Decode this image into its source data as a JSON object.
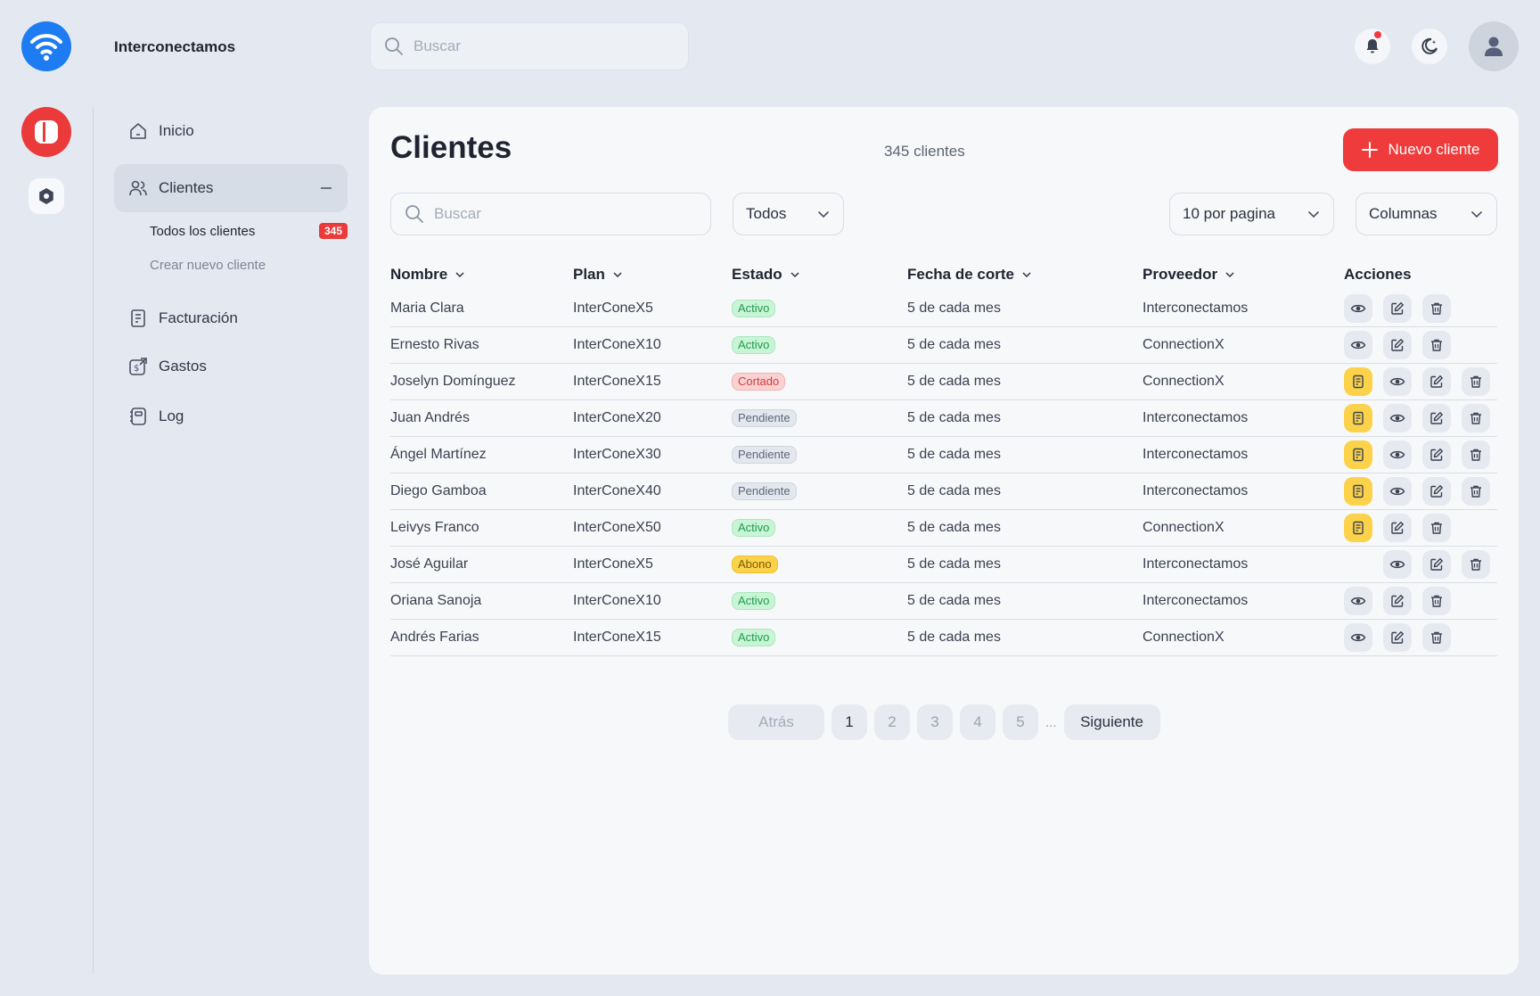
{
  "app": {
    "brand": "Interconectamos"
  },
  "topbar": {
    "search_placeholder": "Buscar"
  },
  "sidebar": {
    "items": [
      {
        "label": "Inicio",
        "icon": "home-icon"
      },
      {
        "label": "Clientes",
        "icon": "users-icon"
      },
      {
        "label": "Facturación",
        "icon": "receipt-icon"
      },
      {
        "label": "Gastos",
        "icon": "money-icon"
      },
      {
        "label": "Log",
        "icon": "log-icon"
      }
    ],
    "clientes_sub": [
      {
        "label": "Todos los clientes",
        "badge": "345"
      },
      {
        "label": "Crear nuevo cliente"
      }
    ]
  },
  "main": {
    "title": "Clientes",
    "count_text": "345 clientes",
    "new_button": "Nuevo cliente",
    "search_placeholder": "Buscar",
    "status_filter": "Todos",
    "per_page": "10 por pagina",
    "columns_button": "Columnas"
  },
  "table": {
    "headers": [
      "Nombre",
      "Plan",
      "Estado",
      "Fecha de corte",
      "Proveedor",
      "Acciones"
    ],
    "rows": [
      {
        "name": "Maria Clara",
        "plan": "InterConeX5",
        "status": "Activo",
        "cut": "5 de cada mes",
        "provider": "Interconectamos",
        "invoice": false
      },
      {
        "name": "Ernesto Rivas",
        "plan": "InterConeX10",
        "status": "Activo",
        "cut": "5 de cada mes",
        "provider": "ConnectionX",
        "invoice": false
      },
      {
        "name": "Joselyn Domínguez",
        "plan": "InterConeX15",
        "status": "Cortado",
        "cut": "5 de cada mes",
        "provider": "ConnectionX",
        "invoice": true
      },
      {
        "name": "Juan Andrés",
        "plan": "InterConeX20",
        "status": "Pendiente",
        "cut": "5 de cada mes",
        "provider": "Interconectamos",
        "invoice": true
      },
      {
        "name": "Ángel Martínez",
        "plan": "InterConeX30",
        "status": "Pendiente",
        "cut": "5 de cada mes",
        "provider": "Interconectamos",
        "invoice": true
      },
      {
        "name": "Diego Gamboa",
        "plan": "InterConeX40",
        "status": "Pendiente",
        "cut": "5 de cada mes",
        "provider": "Interconectamos",
        "invoice": true
      },
      {
        "name": "Leivys Franco",
        "plan": "InterConeX50",
        "status": "Activo",
        "cut": "5 de cada mes",
        "provider": "ConnectionX",
        "invoice": true,
        "no_view": true
      },
      {
        "name": "José Aguilar",
        "plan": "InterConeX5",
        "status": "Abono",
        "cut": "5 de cada mes",
        "provider": "Interconectamos",
        "invoice": false,
        "leading_space": true
      },
      {
        "name": "Oriana Sanoja",
        "plan": "InterConeX10",
        "status": "Activo",
        "cut": "5 de cada mes",
        "provider": "Interconectamos",
        "invoice": false
      },
      {
        "name": "Andrés Farias",
        "plan": "InterConeX15",
        "status": "Activo",
        "cut": "5 de cada mes",
        "provider": "ConnectionX",
        "invoice": false
      }
    ]
  },
  "pagination": {
    "prev": "Atrás",
    "pages": [
      "1",
      "2",
      "3",
      "4",
      "5"
    ],
    "ellipsis": "...",
    "next": "Siguiente",
    "current": "1"
  },
  "colors": {
    "accent": "#ef3b3b",
    "brand_blue": "#1d7cf2",
    "warning": "#fbd24a"
  }
}
